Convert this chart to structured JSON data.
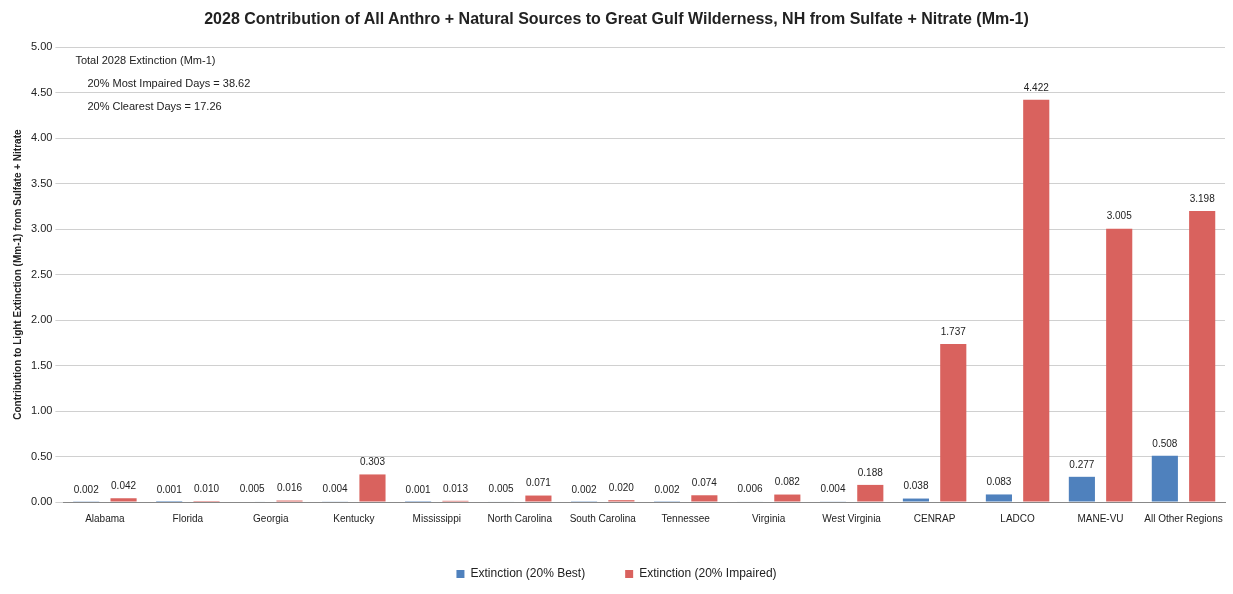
{
  "chart_data": {
    "type": "bar",
    "title": "2028 Contribution of All Anthro + Natural Sources to Great Gulf Wilderness, NH from Sulfate + Nitrate (Mm-1)",
    "ylabel": "Contribution to Light Extinction (Mm-1) from Sulfate + Nitrate",
    "categories": [
      "Alabama",
      "Florida",
      "Georgia",
      "Kentucky",
      "Mississippi",
      "North Carolina",
      "South Carolina",
      "Tennessee",
      "Virginia",
      "West Virginia",
      "CENRAP",
      "LADCO",
      "MANE-VU",
      "All Other Regions"
    ],
    "series": [
      {
        "name": "Extinction (20% Best)",
        "color": "#4f81bd",
        "values": [
          0.002,
          0.001,
          0.005,
          0.004,
          0.001,
          0.005,
          0.002,
          0.002,
          0.006,
          0.004,
          0.038,
          0.083,
          0.277,
          0.508
        ],
        "value_labels": [
          "0.002",
          "0.001",
          "0.005",
          "0.004",
          "0.001",
          "0.005",
          "0.002",
          "0.002",
          "0.006",
          "0.004",
          "0.038",
          "0.083",
          "0.277",
          "0.508"
        ]
      },
      {
        "name": "Extinction (20% Impaired)",
        "color": "#d9625e",
        "values": [
          0.042,
          0.01,
          0.016,
          0.303,
          0.013,
          0.071,
          0.02,
          0.074,
          0.082,
          0.188,
          1.737,
          4.422,
          3.005,
          3.198
        ],
        "value_labels": [
          "0.042",
          "0.010",
          "0.016",
          "0.303",
          "0.013",
          "0.071",
          "0.020",
          "0.074",
          "0.082",
          "0.188",
          "1.737",
          "4.422",
          "3.005",
          "3.198"
        ]
      }
    ],
    "ylim": [
      0,
      5
    ],
    "yticks": [
      {
        "value": 0,
        "label": "0.00"
      },
      {
        "value": 0.5,
        "label": "0.50"
      },
      {
        "value": 1,
        "label": "1.00"
      },
      {
        "value": 1.5,
        "label": "1.50"
      },
      {
        "value": 2,
        "label": "2.00"
      },
      {
        "value": 2.5,
        "label": "2.50"
      },
      {
        "value": 3,
        "label": "3.00"
      },
      {
        "value": 3.5,
        "label": "3.50"
      },
      {
        "value": 4,
        "label": "4.00"
      },
      {
        "value": 4.5,
        "label": "4.50"
      },
      {
        "value": 5,
        "label": "5.00"
      }
    ],
    "grid": "y",
    "legend": "bottom",
    "annotations": [
      "Total 2028 Extinction (Mm-1)",
      "20% Most Impaired Days = 38.62",
      "20% Clearest Days = 17.26"
    ]
  }
}
